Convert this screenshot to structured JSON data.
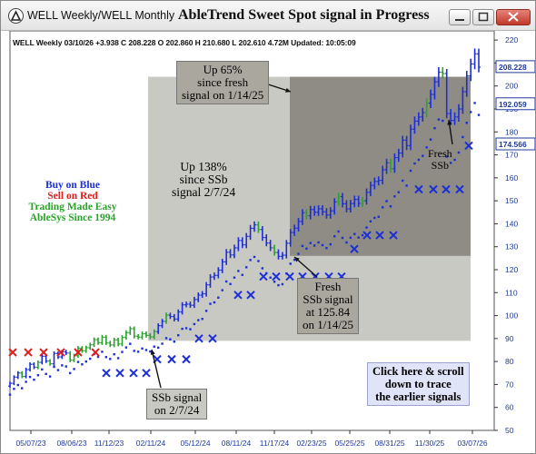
{
  "window": {
    "title": "WELL Weekly/WELL Monthly",
    "chart_title": "AbleTrend Sweet Spot signal in Progress"
  },
  "quote": "WELL  Weekly 03/10/26 +3.938 C 208.228 O 202.860 H 210.680 L 202.610 4.72M Updated: 10:05:09",
  "legend": {
    "line1": "Buy on Blue",
    "line2": "Sell on Red",
    "line3": "Trading Made Easy",
    "line4": "AbleSys Since 1994"
  },
  "annotations": {
    "up65": [
      "Up 65%",
      "since fresh",
      "signal on 1/14/25"
    ],
    "up138": [
      "Up 138%",
      "since SSb",
      "signal 2/7/24"
    ],
    "fresh_ssb_small": [
      "Fresh",
      "SSb"
    ],
    "fresh_ssb_signal": [
      "Fresh",
      "SSb signal",
      "at 125.84",
      "on 1/14/25"
    ],
    "ssb_signal": [
      "SSb signal",
      "on 2/7/24"
    ],
    "click_here": [
      "Click here & scroll",
      "down to trace",
      "the earlier signals"
    ]
  },
  "colors": {
    "buy": "#1c2fd6",
    "sell": "#e01b1b",
    "neutral": "#29a329",
    "box_light": "#c9c9c4",
    "box_dark": "#8e8c84",
    "click_box": "#dfe4f8"
  },
  "chart_data": {
    "type": "candlestick",
    "symbol": "WELL",
    "interval": "Weekly",
    "x_ticks": [
      "05/07/23",
      "08/06/23",
      "11/12/23",
      "02/11/24",
      "05/12/24",
      "08/11/24",
      "11/17/24",
      "02/23/25",
      "05/25/25",
      "08/31/25",
      "11/30/25",
      "03/07/26"
    ],
    "y_ticks": [
      50,
      60,
      70,
      80,
      90,
      100,
      110,
      120,
      130,
      140,
      150,
      160,
      170,
      180,
      190,
      200,
      210,
      220
    ],
    "ylim": [
      50,
      224
    ],
    "price_tags": [
      {
        "value": 208.228,
        "label": "208.228",
        "style": "current"
      },
      {
        "value": 192.059,
        "label": "192.059",
        "style": "stop"
      },
      {
        "value": 174.566,
        "label": "174.566",
        "style": "stop"
      }
    ],
    "closes": [
      70.5,
      73.2,
      75.0,
      73.5,
      76.5,
      78.8,
      77.5,
      79.6,
      82.3,
      80.2,
      79.0,
      83.5,
      82.0,
      84.2,
      83.7,
      80.6,
      82.5,
      85.8,
      84.7,
      86.0,
      87.3,
      89.5,
      88.2,
      90.6,
      88.1,
      87.2,
      89.4,
      87.6,
      90.5,
      92.6,
      94.3,
      91.0,
      90.6,
      92.1,
      91.4,
      90.7,
      93.0,
      95.6,
      97.5,
      100.2,
      99.6,
      98.5,
      101.6,
      104.7,
      105.0,
      104.5,
      107.0,
      108.9,
      109.5,
      113.4,
      116.8,
      117.5,
      119.8,
      123.4,
      127.6,
      126.4,
      129.5,
      132.7,
      130.8,
      134.5,
      138.0,
      139.5,
      137.5,
      134.0,
      131.6,
      129.5,
      127.5,
      125.8,
      126.3,
      131.5,
      136.2,
      138.1,
      141.0,
      144.8,
      143.5,
      146.2,
      145.0,
      146.5,
      145.2,
      143.8,
      145.6,
      149.5,
      151.8,
      148.7,
      146.5,
      148.8,
      150.6,
      148.9,
      150.0,
      153.7,
      156.7,
      158.4,
      158.9,
      163.5,
      166.5,
      164.0,
      168.8,
      170.8,
      176.4,
      174.0,
      181.2,
      184.7,
      186.5,
      188.4,
      192.5,
      196.3,
      201.8,
      206.0,
      205.4,
      188.0,
      185.0,
      186.5,
      190.0,
      197.5,
      204.4,
      209.6,
      214.0,
      208.2
    ],
    "signals": {
      "buy_start_bar": 37,
      "sell_marks": [
        {
          "x": "05/07/23",
          "y": 84
        },
        {
          "x": "~06/23",
          "y": 84
        },
        {
          "x": "~07/23",
          "y": 84
        },
        {
          "x": "08/06/23",
          "y": 84
        },
        {
          "x": "~09/23",
          "y": 84
        }
      ],
      "buy_marks": [
        75,
        75,
        75,
        81,
        81,
        81,
        90,
        90,
        109,
        109,
        117,
        117,
        117,
        117,
        117,
        117,
        117,
        129,
        135,
        135,
        135,
        155,
        155,
        155,
        155,
        174
      ]
    }
  }
}
